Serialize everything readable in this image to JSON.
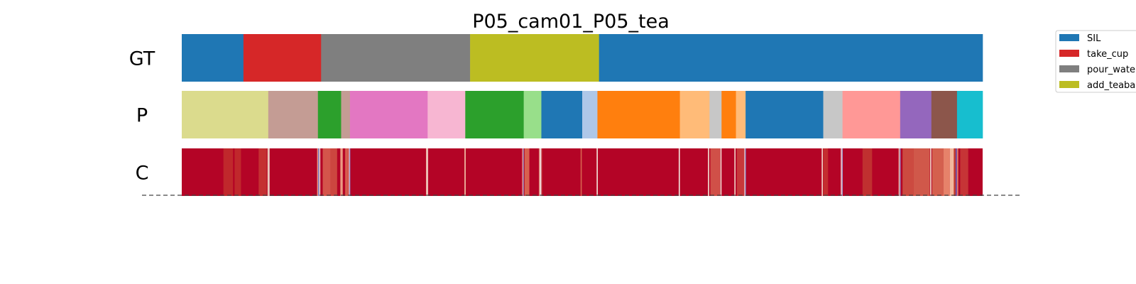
{
  "chart_data": {
    "type": "segmentation",
    "title": "P05_cam01_P05_tea",
    "frame_range": [
      0,
      1000
    ],
    "rows": [
      {
        "label": "GT",
        "segments": [
          {
            "start": 0,
            "end": 77,
            "color": "#1f77b4"
          },
          {
            "start": 77,
            "end": 174,
            "color": "#d62728"
          },
          {
            "start": 174,
            "end": 360,
            "color": "#7f7f7f"
          },
          {
            "start": 360,
            "end": 521,
            "color": "#bcbd22"
          },
          {
            "start": 521,
            "end": 1000,
            "color": "#1f77b4"
          }
        ]
      },
      {
        "label": "P",
        "segments": [
          {
            "start": 0,
            "end": 108,
            "color": "#dbdb8d"
          },
          {
            "start": 108,
            "end": 170,
            "color": "#c49c94"
          },
          {
            "start": 170,
            "end": 199,
            "color": "#2ca02c"
          },
          {
            "start": 199,
            "end": 210,
            "color": "#c49c94"
          },
          {
            "start": 210,
            "end": 307,
            "color": "#e377c2"
          },
          {
            "start": 307,
            "end": 354,
            "color": "#f7b6d2"
          },
          {
            "start": 354,
            "end": 427,
            "color": "#2ca02c"
          },
          {
            "start": 427,
            "end": 449,
            "color": "#98df8a"
          },
          {
            "start": 449,
            "end": 500,
            "color": "#1f77b4"
          },
          {
            "start": 500,
            "end": 519,
            "color": "#aec7e8"
          },
          {
            "start": 519,
            "end": 622,
            "color": "#ff7f0e"
          },
          {
            "start": 622,
            "end": 659,
            "color": "#ffbb78"
          },
          {
            "start": 659,
            "end": 674,
            "color": "#c7c7c7"
          },
          {
            "start": 674,
            "end": 692,
            "color": "#ff7f0e"
          },
          {
            "start": 692,
            "end": 704,
            "color": "#ffbb78"
          },
          {
            "start": 704,
            "end": 801,
            "color": "#1f77b4"
          },
          {
            "start": 801,
            "end": 825,
            "color": "#c7c7c7"
          },
          {
            "start": 825,
            "end": 897,
            "color": "#ff9896"
          },
          {
            "start": 897,
            "end": 936,
            "color": "#9467bd"
          },
          {
            "start": 936,
            "end": 968,
            "color": "#8c564b"
          },
          {
            "start": 968,
            "end": 1000,
            "color": "#17becf"
          }
        ]
      },
      {
        "label": "C",
        "base_color": "#b40426",
        "stripes": [
          {
            "pos": 52,
            "width": 12,
            "color": "#c0282c"
          },
          {
            "pos": 66,
            "width": 8,
            "color": "#c0282c"
          },
          {
            "pos": 96,
            "width": 10,
            "color": "#c43032"
          },
          {
            "pos": 107,
            "width": 2,
            "color": "#e8b8a6"
          },
          {
            "pos": 108.6,
            "width": 1,
            "color": "#f2f0ee"
          },
          {
            "pos": 169,
            "width": 1.5,
            "color": "#e89a80"
          },
          {
            "pos": 170.3,
            "width": 1,
            "color": "#6a7fd8"
          },
          {
            "pos": 171.5,
            "width": 1.5,
            "color": "#e7d3cb"
          },
          {
            "pos": 176,
            "width": 10,
            "color": "#d4554b"
          },
          {
            "pos": 186,
            "width": 8,
            "color": "#cc463f"
          },
          {
            "pos": 198,
            "width": 3,
            "color": "#ec9a82"
          },
          {
            "pos": 204,
            "width": 4,
            "color": "#d65c4e"
          },
          {
            "pos": 208.5,
            "width": 1,
            "color": "#f4dcd2"
          },
          {
            "pos": 209.6,
            "width": 0.8,
            "color": "#7e97e8"
          },
          {
            "pos": 305,
            "width": 1.5,
            "color": "#f0c4b0"
          },
          {
            "pos": 306.5,
            "width": 1,
            "color": "#f6e6dc"
          },
          {
            "pos": 353,
            "width": 1.5,
            "color": "#f2c2a8"
          },
          {
            "pos": 425,
            "width": 1,
            "color": "#e8a89a"
          },
          {
            "pos": 426.2,
            "width": 0.8,
            "color": "#8ea6ec"
          },
          {
            "pos": 428,
            "width": 6,
            "color": "#d8604e"
          },
          {
            "pos": 446,
            "width": 1.5,
            "color": "#e8a896"
          },
          {
            "pos": 447.5,
            "width": 1.5,
            "color": "#f6f2ef"
          },
          {
            "pos": 449.5,
            "width": 1,
            "color": "#c0282c"
          },
          {
            "pos": 498,
            "width": 1.5,
            "color": "#d6604e"
          },
          {
            "pos": 518,
            "width": 1.5,
            "color": "#f1ddd2"
          },
          {
            "pos": 620.5,
            "width": 1.5,
            "color": "#f1e0d8"
          },
          {
            "pos": 657,
            "width": 1.5,
            "color": "#f0d8cc"
          },
          {
            "pos": 660,
            "width": 12,
            "color": "#d05048"
          },
          {
            "pos": 672.5,
            "width": 1.5,
            "color": "#f2dcd0"
          },
          {
            "pos": 690,
            "width": 1.5,
            "color": "#eecdbf"
          },
          {
            "pos": 693,
            "width": 10,
            "color": "#c8383a"
          },
          {
            "pos": 702.5,
            "width": 1,
            "color": "#f4e4dc"
          },
          {
            "pos": 703.6,
            "width": 0.8,
            "color": "#6f86dc"
          },
          {
            "pos": 799,
            "width": 1.5,
            "color": "#f0d0c2"
          },
          {
            "pos": 801,
            "width": 6,
            "color": "#c42e30"
          },
          {
            "pos": 823,
            "width": 1.2,
            "color": "#f6f0ec"
          },
          {
            "pos": 824.4,
            "width": 0.8,
            "color": "#9bb2ee"
          },
          {
            "pos": 850,
            "width": 12,
            "color": "#c03030"
          },
          {
            "pos": 895,
            "width": 1.5,
            "color": "#e8a898"
          },
          {
            "pos": 896.5,
            "width": 1,
            "color": "#8ea5ea"
          },
          {
            "pos": 900,
            "width": 14,
            "color": "#cc4a40"
          },
          {
            "pos": 914,
            "width": 20,
            "color": "#d0584a"
          },
          {
            "pos": 934.5,
            "width": 1.5,
            "color": "#f0d6c8"
          },
          {
            "pos": 937,
            "width": 14,
            "color": "#d4604e"
          },
          {
            "pos": 951,
            "width": 8,
            "color": "#e6826a"
          },
          {
            "pos": 959,
            "width": 5,
            "color": "#f3b89e"
          },
          {
            "pos": 964,
            "width": 2,
            "color": "#c34234"
          },
          {
            "pos": 966.5,
            "width": 1.2,
            "color": "#5a70d4"
          },
          {
            "pos": 968,
            "width": 1.5,
            "color": "#e08070"
          },
          {
            "pos": 972,
            "width": 10,
            "color": "#c63436"
          }
        ]
      }
    ],
    "baseline": "dashed",
    "legend": {
      "placement": "top-right",
      "entries": [
        {
          "label": "SIL",
          "color": "#1f77b4"
        },
        {
          "label": "take_cup",
          "color": "#d62728"
        },
        {
          "label": "pour_water",
          "color": "#7f7f7f"
        },
        {
          "label": "add_teabag",
          "color": "#bcbd22"
        }
      ]
    }
  }
}
